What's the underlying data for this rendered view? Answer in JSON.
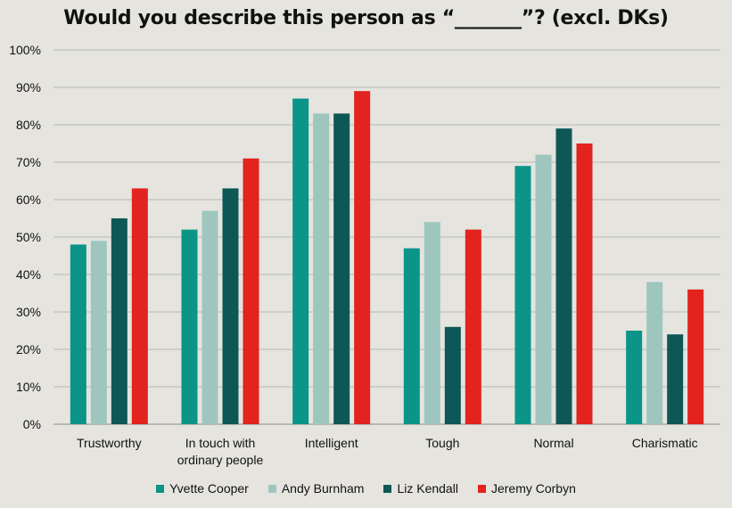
{
  "chart_data": {
    "type": "bar",
    "title": "Would you describe this person as “_______”? (excl. DKs)",
    "categories": [
      [
        "Trustworthy"
      ],
      [
        "In touch with",
        "ordinary people"
      ],
      [
        "Intelligent"
      ],
      [
        "Tough"
      ],
      [
        "Normal"
      ],
      [
        "Charismatic"
      ]
    ],
    "series": [
      {
        "name": "Yvette Cooper",
        "color": "#0b9488",
        "values": [
          48,
          52,
          87,
          47,
          69,
          25
        ]
      },
      {
        "name": "Andy Burnham",
        "color": "#9ec6bf",
        "values": [
          49,
          57,
          83,
          54,
          72,
          38
        ]
      },
      {
        "name": "Liz Kendall",
        "color": "#0e5757",
        "values": [
          55,
          63,
          83,
          26,
          79,
          24
        ]
      },
      {
        "name": "Jeremy Corbyn",
        "color": "#e2231e",
        "values": [
          63,
          71,
          89,
          52,
          75,
          36
        ]
      }
    ],
    "ylim": [
      0,
      100
    ],
    "yticks": [
      "0%",
      "10%",
      "20%",
      "30%",
      "40%",
      "50%",
      "60%",
      "70%",
      "80%",
      "90%",
      "100%"
    ],
    "xlabel": "",
    "ylabel": "",
    "grid": true,
    "legend": "bottom"
  }
}
